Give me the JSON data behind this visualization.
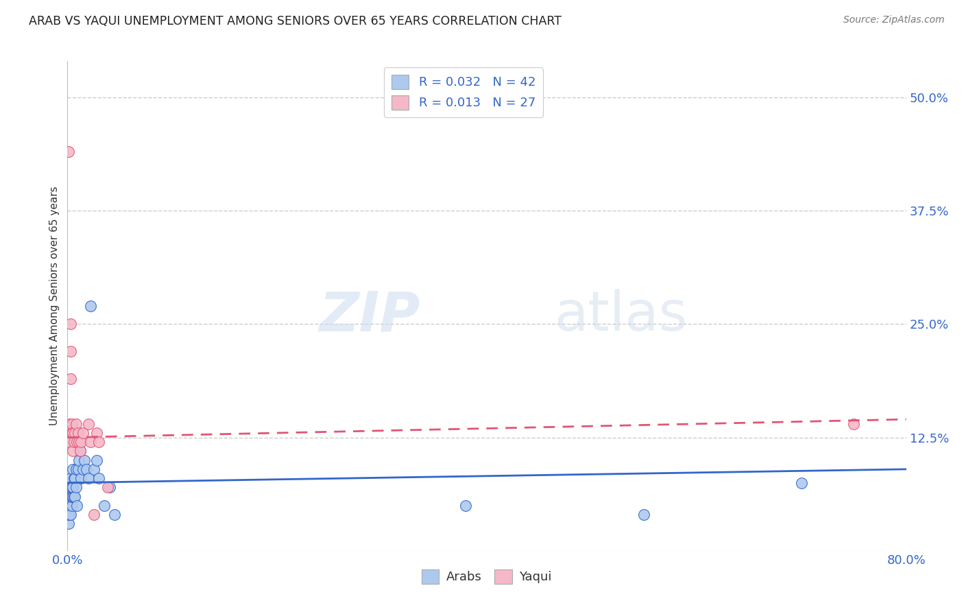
{
  "title": "ARAB VS YAQUI UNEMPLOYMENT AMONG SENIORS OVER 65 YEARS CORRELATION CHART",
  "source": "Source: ZipAtlas.com",
  "ylabel": "Unemployment Among Seniors over 65 years",
  "xlim": [
    0.0,
    0.8
  ],
  "ylim": [
    0.0,
    0.54
  ],
  "yticks_right": [
    0.125,
    0.25,
    0.375,
    0.5
  ],
  "ytick_labels_right": [
    "12.5%",
    "25.0%",
    "37.5%",
    "50.0%"
  ],
  "arab_R": "0.032",
  "arab_N": "42",
  "yaqui_R": "0.013",
  "yaqui_N": "27",
  "arab_color": "#aec9ee",
  "yaqui_color": "#f5b8c8",
  "arab_line_color": "#3366cc",
  "yaqui_line_color": "#e05575",
  "background_color": "#ffffff",
  "watermark_zip": "ZIP",
  "watermark_atlas": "atlas",
  "arab_x": [
    0.001,
    0.001,
    0.001,
    0.001,
    0.002,
    0.002,
    0.002,
    0.003,
    0.003,
    0.003,
    0.003,
    0.004,
    0.004,
    0.004,
    0.005,
    0.005,
    0.005,
    0.006,
    0.006,
    0.007,
    0.007,
    0.008,
    0.008,
    0.009,
    0.01,
    0.011,
    0.012,
    0.013,
    0.015,
    0.016,
    0.018,
    0.02,
    0.022,
    0.025,
    0.028,
    0.03,
    0.035,
    0.04,
    0.045,
    0.38,
    0.55,
    0.7
  ],
  "arab_y": [
    0.03,
    0.04,
    0.05,
    0.06,
    0.04,
    0.05,
    0.07,
    0.04,
    0.06,
    0.07,
    0.08,
    0.05,
    0.06,
    0.07,
    0.06,
    0.07,
    0.09,
    0.06,
    0.08,
    0.06,
    0.08,
    0.07,
    0.09,
    0.05,
    0.09,
    0.1,
    0.11,
    0.08,
    0.09,
    0.1,
    0.09,
    0.08,
    0.27,
    0.09,
    0.1,
    0.08,
    0.05,
    0.07,
    0.04,
    0.05,
    0.04,
    0.075
  ],
  "yaqui_x": [
    0.001,
    0.001,
    0.002,
    0.002,
    0.003,
    0.003,
    0.003,
    0.004,
    0.004,
    0.005,
    0.005,
    0.006,
    0.007,
    0.008,
    0.009,
    0.01,
    0.011,
    0.012,
    0.013,
    0.015,
    0.02,
    0.022,
    0.025,
    0.028,
    0.03,
    0.038,
    0.75
  ],
  "yaqui_y": [
    0.44,
    0.13,
    0.14,
    0.12,
    0.25,
    0.22,
    0.19,
    0.14,
    0.13,
    0.13,
    0.11,
    0.12,
    0.13,
    0.14,
    0.12,
    0.13,
    0.12,
    0.11,
    0.12,
    0.13,
    0.14,
    0.12,
    0.04,
    0.13,
    0.12,
    0.07,
    0.14
  ],
  "arab_trend_start": 0.075,
  "arab_trend_end": 0.09,
  "yaqui_trend_start": 0.125,
  "yaqui_trend_end": 0.145
}
